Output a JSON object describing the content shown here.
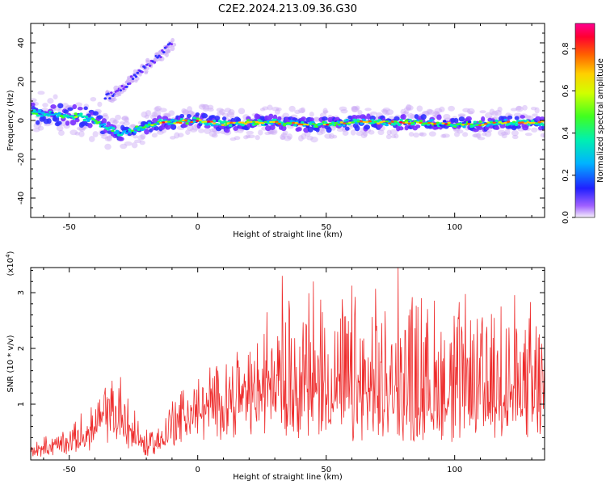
{
  "title": "C2E2.2024.213.09.36.G30",
  "chart_data": [
    {
      "type": "heatmap",
      "xlabel": "Height of straight line (km)",
      "ylabel": "Frequency (Hz)",
      "xlim": [
        -65,
        135
      ],
      "ylim": [
        -50,
        50
      ],
      "xticks": [
        -50,
        0,
        50,
        100
      ],
      "yticks": [
        -40,
        -20,
        0,
        20,
        40
      ],
      "colorbar": {
        "label": "Normalized spectral amplitude",
        "range": [
          0.0,
          0.92
        ],
        "ticks": [
          "0.0",
          "0.2",
          "0.4",
          "0.6",
          "0.8"
        ]
      },
      "ridge": {
        "x": [
          -65,
          -55,
          -45,
          -40,
          -35,
          -30,
          -25,
          -20,
          -15,
          -10,
          0,
          10,
          20,
          30,
          40,
          50,
          60,
          70,
          80,
          90,
          100,
          110,
          120,
          135
        ],
        "frequency": [
          4,
          3,
          2,
          0,
          -4,
          -7,
          -5,
          -3,
          -1,
          -1,
          0,
          -2,
          -1,
          -1,
          -2,
          -2,
          -1,
          -1,
          -1,
          -1,
          -2,
          -2,
          -1,
          -1
        ]
      },
      "branch": {
        "x": [
          -36,
          -32,
          -28,
          -24,
          -20,
          -15,
          -10
        ],
        "frequency": [
          12,
          14,
          18,
          24,
          28,
          33,
          40
        ]
      }
    },
    {
      "type": "line",
      "xlabel": "Height of straight line (km)",
      "ylabel": "SNR (10 * v/v)",
      "scale_label": "(x10^4)",
      "xlim": [
        -65,
        135
      ],
      "ylim": [
        0,
        3.45
      ],
      "xticks": [
        -50,
        0,
        50,
        100
      ],
      "yticks": [
        1,
        2,
        3
      ],
      "color": "#ee2c2c",
      "envelope": {
        "x": [
          -65,
          -50,
          -40,
          -35,
          -30,
          -25,
          -20,
          -15,
          -10,
          -5,
          0,
          10,
          20,
          25,
          30,
          35,
          40,
          45,
          50,
          55,
          60,
          70,
          80,
          90,
          100,
          110,
          120,
          130,
          135
        ],
        "base": [
          0.1,
          0.2,
          0.4,
          0.6,
          0.5,
          0.3,
          0.1,
          0.2,
          0.5,
          0.6,
          0.7,
          0.8,
          0.85,
          0.9,
          1.0,
          0.8,
          0.8,
          0.75,
          0.8,
          0.7,
          0.6,
          0.65,
          0.6,
          0.6,
          0.65,
          0.6,
          0.7,
          0.6,
          0.7
        ],
        "peak": [
          0.3,
          0.5,
          0.9,
          1.3,
          1.45,
          0.9,
          0.5,
          0.6,
          1.0,
          1.1,
          1.2,
          1.6,
          1.8,
          2.2,
          2.4,
          2.6,
          2.6,
          2.6,
          2.7,
          2.7,
          2.7,
          2.6,
          2.7,
          2.6,
          2.6,
          2.5,
          2.6,
          2.5,
          2.5
        ]
      },
      "spikes": [
        {
          "x": 33,
          "y": 3.3
        },
        {
          "x": 78,
          "y": 3.45
        },
        {
          "x": 45,
          "y": 3.2
        },
        {
          "x": 87,
          "y": 2.9
        },
        {
          "x": 118,
          "y": 2.75
        }
      ]
    }
  ]
}
